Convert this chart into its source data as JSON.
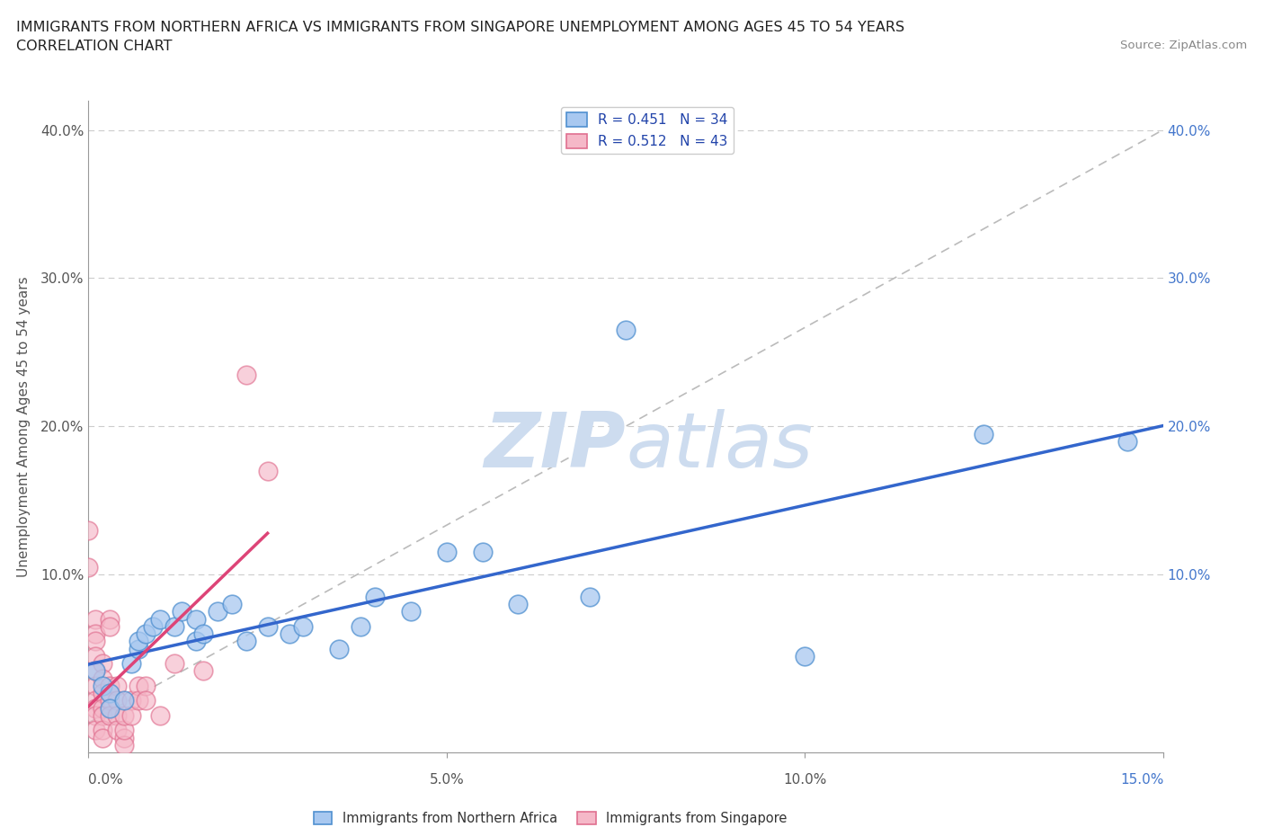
{
  "title_line1": "IMMIGRANTS FROM NORTHERN AFRICA VS IMMIGRANTS FROM SINGAPORE UNEMPLOYMENT AMONG AGES 45 TO 54 YEARS",
  "title_line2": "CORRELATION CHART",
  "source_text": "Source: ZipAtlas.com",
  "xlabel_left": "Immigrants from Northern Africa",
  "xlabel_right": "Immigrants from Singapore",
  "ylabel": "Unemployment Among Ages 45 to 54 years",
  "xlim": [
    0,
    0.15
  ],
  "ylim": [
    -0.02,
    0.42
  ],
  "plot_ylim": [
    -0.02,
    0.42
  ],
  "xticks": [
    0.0,
    0.05,
    0.1,
    0.15
  ],
  "xticklabels": [
    "0.0%",
    "5.0%",
    "10.0%",
    "15.0%"
  ],
  "yticks": [
    0.0,
    0.1,
    0.2,
    0.3,
    0.4
  ],
  "yticklabels_left": [
    "",
    "10.0%",
    "20.0%",
    "30.0%",
    "40.0%"
  ],
  "yticklabels_right": [
    "",
    "10.0%",
    "20.0%",
    "30.0%",
    "40.0%"
  ],
  "R_blue": 0.451,
  "N_blue": 34,
  "R_pink": 0.512,
  "N_pink": 43,
  "blue_color": "#a8c8f0",
  "pink_color": "#f5b8c8",
  "blue_edge_color": "#5090d0",
  "pink_edge_color": "#e07090",
  "blue_line_color": "#3366cc",
  "pink_line_color": "#dd4477",
  "watermark_color": "#cddcef",
  "scatter_blue": [
    [
      0.001,
      0.035
    ],
    [
      0.002,
      0.025
    ],
    [
      0.003,
      0.02
    ],
    [
      0.003,
      0.01
    ],
    [
      0.005,
      0.015
    ],
    [
      0.006,
      0.04
    ],
    [
      0.007,
      0.05
    ],
    [
      0.007,
      0.055
    ],
    [
      0.008,
      0.06
    ],
    [
      0.009,
      0.065
    ],
    [
      0.01,
      0.07
    ],
    [
      0.012,
      0.065
    ],
    [
      0.013,
      0.075
    ],
    [
      0.015,
      0.055
    ],
    [
      0.015,
      0.07
    ],
    [
      0.016,
      0.06
    ],
    [
      0.018,
      0.075
    ],
    [
      0.02,
      0.08
    ],
    [
      0.022,
      0.055
    ],
    [
      0.025,
      0.065
    ],
    [
      0.028,
      0.06
    ],
    [
      0.03,
      0.065
    ],
    [
      0.035,
      0.05
    ],
    [
      0.038,
      0.065
    ],
    [
      0.04,
      0.085
    ],
    [
      0.045,
      0.075
    ],
    [
      0.05,
      0.115
    ],
    [
      0.055,
      0.115
    ],
    [
      0.06,
      0.08
    ],
    [
      0.07,
      0.085
    ],
    [
      0.075,
      0.265
    ],
    [
      0.1,
      0.045
    ],
    [
      0.125,
      0.195
    ],
    [
      0.145,
      0.19
    ]
  ],
  "scatter_pink": [
    [
      0.0,
      0.13
    ],
    [
      0.0,
      0.105
    ],
    [
      0.001,
      0.07
    ],
    [
      0.001,
      0.06
    ],
    [
      0.001,
      0.055
    ],
    [
      0.001,
      0.045
    ],
    [
      0.001,
      0.035
    ],
    [
      0.001,
      0.025
    ],
    [
      0.001,
      0.015
    ],
    [
      0.001,
      0.01
    ],
    [
      0.001,
      0.005
    ],
    [
      0.001,
      -0.005
    ],
    [
      0.002,
      0.04
    ],
    [
      0.002,
      0.03
    ],
    [
      0.002,
      0.02
    ],
    [
      0.002,
      0.01
    ],
    [
      0.002,
      0.005
    ],
    [
      0.002,
      -0.005
    ],
    [
      0.002,
      -0.01
    ],
    [
      0.003,
      0.025
    ],
    [
      0.003,
      0.015
    ],
    [
      0.003,
      0.005
    ],
    [
      0.003,
      0.07
    ],
    [
      0.003,
      0.065
    ],
    [
      0.004,
      0.025
    ],
    [
      0.004,
      0.015
    ],
    [
      0.004,
      0.005
    ],
    [
      0.004,
      -0.005
    ],
    [
      0.005,
      -0.01
    ],
    [
      0.005,
      -0.015
    ],
    [
      0.005,
      -0.005
    ],
    [
      0.005,
      0.005
    ],
    [
      0.006,
      0.015
    ],
    [
      0.006,
      0.005
    ],
    [
      0.007,
      0.025
    ],
    [
      0.007,
      0.015
    ],
    [
      0.008,
      0.025
    ],
    [
      0.008,
      0.015
    ],
    [
      0.01,
      0.005
    ],
    [
      0.012,
      0.04
    ],
    [
      0.016,
      0.035
    ],
    [
      0.022,
      0.235
    ],
    [
      0.025,
      0.17
    ]
  ]
}
